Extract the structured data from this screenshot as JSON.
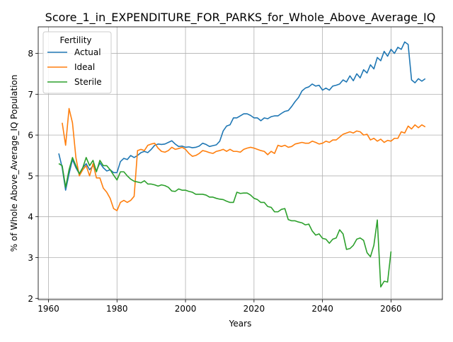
{
  "chart_data": {
    "type": "line",
    "title": "Score_1_in_EXPENDITURE_FOR_PARKS_for_Whole_Above_Average_IQ",
    "xlabel": "Years",
    "ylabel": "% of Whole Above_Average_IQ Population",
    "xlim": [
      1957,
      2075
    ],
    "ylim": [
      1.97,
      8.65
    ],
    "xticks": [
      1960,
      1980,
      2000,
      2020,
      2040,
      2060
    ],
    "yticks": [
      2,
      3,
      4,
      5,
      6,
      7,
      8
    ],
    "grid": true,
    "legend": {
      "title": "Fertility",
      "placement": "top-left"
    },
    "series": [
      {
        "name": "Actual",
        "color": "#1f77b4",
        "points": [
          [
            1963,
            5.55
          ],
          [
            1964,
            5.2
          ],
          [
            1965,
            4.65
          ],
          [
            1966,
            5.05
          ],
          [
            1967,
            5.4
          ],
          [
            1968,
            5.2
          ],
          [
            1969,
            5.05
          ],
          [
            1970,
            5.2
          ],
          [
            1971,
            5.3
          ],
          [
            1972,
            5.15
          ],
          [
            1973,
            5.25
          ],
          [
            1974,
            5.12
          ],
          [
            1975,
            5.32
          ],
          [
            1976,
            5.2
          ],
          [
            1977,
            5.12
          ],
          [
            1978,
            5.15
          ],
          [
            1979,
            5.08
          ],
          [
            1980,
            5.08
          ],
          [
            1981,
            5.35
          ],
          [
            1982,
            5.43
          ],
          [
            1983,
            5.4
          ],
          [
            1984,
            5.5
          ],
          [
            1985,
            5.45
          ],
          [
            1986,
            5.5
          ],
          [
            1987,
            5.57
          ],
          [
            1988,
            5.6
          ],
          [
            1989,
            5.57
          ],
          [
            1990,
            5.65
          ],
          [
            1991,
            5.75
          ],
          [
            1992,
            5.78
          ],
          [
            1993,
            5.77
          ],
          [
            1994,
            5.78
          ],
          [
            1995,
            5.82
          ],
          [
            1996,
            5.86
          ],
          [
            1997,
            5.78
          ],
          [
            1998,
            5.72
          ],
          [
            1999,
            5.73
          ],
          [
            2000,
            5.7
          ],
          [
            2001,
            5.71
          ],
          [
            2002,
            5.69
          ],
          [
            2003,
            5.7
          ],
          [
            2004,
            5.73
          ],
          [
            2005,
            5.8
          ],
          [
            2006,
            5.77
          ],
          [
            2007,
            5.72
          ],
          [
            2008,
            5.74
          ],
          [
            2009,
            5.76
          ],
          [
            2010,
            5.85
          ],
          [
            2011,
            6.1
          ],
          [
            2012,
            6.22
          ],
          [
            2013,
            6.25
          ],
          [
            2014,
            6.42
          ],
          [
            2015,
            6.42
          ],
          [
            2016,
            6.47
          ],
          [
            2017,
            6.52
          ],
          [
            2018,
            6.52
          ],
          [
            2019,
            6.48
          ],
          [
            2020,
            6.42
          ],
          [
            2021,
            6.42
          ],
          [
            2022,
            6.35
          ],
          [
            2023,
            6.42
          ],
          [
            2024,
            6.4
          ],
          [
            2025,
            6.45
          ],
          [
            2026,
            6.47
          ],
          [
            2027,
            6.47
          ],
          [
            2028,
            6.53
          ],
          [
            2029,
            6.58
          ],
          [
            2030,
            6.6
          ],
          [
            2031,
            6.7
          ],
          [
            2032,
            6.82
          ],
          [
            2033,
            6.92
          ],
          [
            2034,
            7.08
          ],
          [
            2035,
            7.15
          ],
          [
            2036,
            7.18
          ],
          [
            2037,
            7.25
          ],
          [
            2038,
            7.2
          ],
          [
            2039,
            7.22
          ],
          [
            2040,
            7.1
          ],
          [
            2041,
            7.15
          ],
          [
            2042,
            7.1
          ],
          [
            2043,
            7.2
          ],
          [
            2044,
            7.22
          ],
          [
            2045,
            7.25
          ],
          [
            2046,
            7.35
          ],
          [
            2047,
            7.3
          ],
          [
            2048,
            7.45
          ],
          [
            2049,
            7.33
          ],
          [
            2050,
            7.5
          ],
          [
            2051,
            7.4
          ],
          [
            2052,
            7.6
          ],
          [
            2053,
            7.52
          ],
          [
            2054,
            7.72
          ],
          [
            2055,
            7.62
          ],
          [
            2056,
            7.9
          ],
          [
            2057,
            7.82
          ],
          [
            2058,
            8.05
          ],
          [
            2059,
            7.93
          ],
          [
            2060,
            8.1
          ],
          [
            2061,
            8.0
          ],
          [
            2062,
            8.15
          ],
          [
            2063,
            8.1
          ],
          [
            2064,
            8.28
          ],
          [
            2065,
            8.22
          ],
          [
            2066,
            7.35
          ],
          [
            2067,
            7.28
          ],
          [
            2068,
            7.38
          ],
          [
            2069,
            7.32
          ],
          [
            2070,
            7.38
          ]
        ]
      },
      {
        "name": "Ideal",
        "color": "#ff7f0e",
        "points": [
          [
            1964,
            6.3
          ],
          [
            1965,
            5.75
          ],
          [
            1966,
            6.65
          ],
          [
            1967,
            6.3
          ],
          [
            1968,
            5.45
          ],
          [
            1969,
            5.0
          ],
          [
            1970,
            5.15
          ],
          [
            1971,
            5.25
          ],
          [
            1972,
            5.0
          ],
          [
            1973,
            5.3
          ],
          [
            1974,
            4.95
          ],
          [
            1975,
            4.95
          ],
          [
            1976,
            4.7
          ],
          [
            1977,
            4.6
          ],
          [
            1978,
            4.45
          ],
          [
            1979,
            4.2
          ],
          [
            1980,
            4.15
          ],
          [
            1981,
            4.35
          ],
          [
            1982,
            4.4
          ],
          [
            1983,
            4.35
          ],
          [
            1984,
            4.4
          ],
          [
            1985,
            4.5
          ],
          [
            1986,
            5.62
          ],
          [
            1987,
            5.65
          ],
          [
            1988,
            5.62
          ],
          [
            1989,
            5.75
          ],
          [
            1990,
            5.78
          ],
          [
            1991,
            5.8
          ],
          [
            1992,
            5.68
          ],
          [
            1993,
            5.6
          ],
          [
            1994,
            5.58
          ],
          [
            1995,
            5.62
          ],
          [
            1996,
            5.7
          ],
          [
            1997,
            5.65
          ],
          [
            1998,
            5.67
          ],
          [
            1999,
            5.7
          ],
          [
            2000,
            5.65
          ],
          [
            2001,
            5.55
          ],
          [
            2002,
            5.48
          ],
          [
            2003,
            5.5
          ],
          [
            2004,
            5.55
          ],
          [
            2005,
            5.62
          ],
          [
            2006,
            5.6
          ],
          [
            2007,
            5.57
          ],
          [
            2008,
            5.55
          ],
          [
            2009,
            5.6
          ],
          [
            2010,
            5.62
          ],
          [
            2011,
            5.65
          ],
          [
            2012,
            5.6
          ],
          [
            2013,
            5.65
          ],
          [
            2014,
            5.6
          ],
          [
            2015,
            5.6
          ],
          [
            2016,
            5.58
          ],
          [
            2017,
            5.65
          ],
          [
            2018,
            5.68
          ],
          [
            2019,
            5.7
          ],
          [
            2020,
            5.68
          ],
          [
            2021,
            5.65
          ],
          [
            2022,
            5.62
          ],
          [
            2023,
            5.6
          ],
          [
            2024,
            5.52
          ],
          [
            2025,
            5.6
          ],
          [
            2026,
            5.55
          ],
          [
            2027,
            5.75
          ],
          [
            2028,
            5.72
          ],
          [
            2029,
            5.75
          ],
          [
            2030,
            5.7
          ],
          [
            2031,
            5.72
          ],
          [
            2032,
            5.78
          ],
          [
            2033,
            5.8
          ],
          [
            2034,
            5.82
          ],
          [
            2035,
            5.8
          ],
          [
            2036,
            5.8
          ],
          [
            2037,
            5.85
          ],
          [
            2038,
            5.82
          ],
          [
            2039,
            5.78
          ],
          [
            2040,
            5.8
          ],
          [
            2041,
            5.85
          ],
          [
            2042,
            5.82
          ],
          [
            2043,
            5.88
          ],
          [
            2044,
            5.88
          ],
          [
            2045,
            5.95
          ],
          [
            2046,
            6.02
          ],
          [
            2047,
            6.05
          ],
          [
            2048,
            6.08
          ],
          [
            2049,
            6.05
          ],
          [
            2050,
            6.1
          ],
          [
            2051,
            6.08
          ],
          [
            2052,
            6.0
          ],
          [
            2053,
            6.02
          ],
          [
            2054,
            5.88
          ],
          [
            2055,
            5.92
          ],
          [
            2056,
            5.85
          ],
          [
            2057,
            5.9
          ],
          [
            2058,
            5.82
          ],
          [
            2059,
            5.87
          ],
          [
            2060,
            5.85
          ],
          [
            2061,
            5.92
          ],
          [
            2062,
            5.92
          ],
          [
            2063,
            6.08
          ],
          [
            2064,
            6.05
          ],
          [
            2065,
            6.22
          ],
          [
            2066,
            6.15
          ],
          [
            2067,
            6.25
          ],
          [
            2068,
            6.18
          ],
          [
            2069,
            6.25
          ],
          [
            2070,
            6.2
          ]
        ]
      },
      {
        "name": "Sterile",
        "color": "#2ca02c",
        "points": [
          [
            1963,
            5.3
          ],
          [
            1964,
            5.25
          ],
          [
            1965,
            4.72
          ],
          [
            1966,
            5.15
          ],
          [
            1967,
            5.45
          ],
          [
            1968,
            5.25
          ],
          [
            1969,
            5.05
          ],
          [
            1970,
            5.2
          ],
          [
            1971,
            5.45
          ],
          [
            1972,
            5.25
          ],
          [
            1973,
            5.38
          ],
          [
            1974,
            5.1
          ],
          [
            1975,
            5.38
          ],
          [
            1976,
            5.25
          ],
          [
            1977,
            5.25
          ],
          [
            1978,
            5.15
          ],
          [
            1979,
            5.02
          ],
          [
            1980,
            4.9
          ],
          [
            1981,
            5.1
          ],
          [
            1982,
            5.1
          ],
          [
            1983,
            5.0
          ],
          [
            1984,
            4.92
          ],
          [
            1985,
            4.87
          ],
          [
            1986,
            4.85
          ],
          [
            1987,
            4.83
          ],
          [
            1988,
            4.88
          ],
          [
            1989,
            4.8
          ],
          [
            1990,
            4.8
          ],
          [
            1991,
            4.78
          ],
          [
            1992,
            4.75
          ],
          [
            1993,
            4.78
          ],
          [
            1994,
            4.76
          ],
          [
            1995,
            4.72
          ],
          [
            1996,
            4.63
          ],
          [
            1997,
            4.62
          ],
          [
            1998,
            4.68
          ],
          [
            1999,
            4.65
          ],
          [
            2000,
            4.65
          ],
          [
            2001,
            4.62
          ],
          [
            2002,
            4.6
          ],
          [
            2003,
            4.55
          ],
          [
            2004,
            4.55
          ],
          [
            2005,
            4.55
          ],
          [
            2006,
            4.53
          ],
          [
            2007,
            4.48
          ],
          [
            2008,
            4.48
          ],
          [
            2009,
            4.45
          ],
          [
            2010,
            4.43
          ],
          [
            2011,
            4.42
          ],
          [
            2012,
            4.38
          ],
          [
            2013,
            4.35
          ],
          [
            2014,
            4.35
          ],
          [
            2015,
            4.6
          ],
          [
            2016,
            4.57
          ],
          [
            2017,
            4.58
          ],
          [
            2018,
            4.58
          ],
          [
            2019,
            4.53
          ],
          [
            2020,
            4.45
          ],
          [
            2021,
            4.42
          ],
          [
            2022,
            4.35
          ],
          [
            2023,
            4.35
          ],
          [
            2024,
            4.25
          ],
          [
            2025,
            4.23
          ],
          [
            2026,
            4.12
          ],
          [
            2027,
            4.12
          ],
          [
            2028,
            4.18
          ],
          [
            2029,
            4.2
          ],
          [
            2030,
            3.93
          ],
          [
            2031,
            3.9
          ],
          [
            2032,
            3.9
          ],
          [
            2033,
            3.87
          ],
          [
            2034,
            3.85
          ],
          [
            2035,
            3.8
          ],
          [
            2036,
            3.82
          ],
          [
            2037,
            3.65
          ],
          [
            2038,
            3.55
          ],
          [
            2039,
            3.58
          ],
          [
            2040,
            3.47
          ],
          [
            2041,
            3.45
          ],
          [
            2042,
            3.35
          ],
          [
            2043,
            3.45
          ],
          [
            2044,
            3.48
          ],
          [
            2045,
            3.68
          ],
          [
            2046,
            3.58
          ],
          [
            2047,
            3.2
          ],
          [
            2048,
            3.22
          ],
          [
            2049,
            3.3
          ],
          [
            2050,
            3.45
          ],
          [
            2051,
            3.48
          ],
          [
            2052,
            3.42
          ],
          [
            2053,
            3.12
          ],
          [
            2054,
            3.02
          ],
          [
            2055,
            3.3
          ],
          [
            2056,
            3.92
          ],
          [
            2057,
            2.28
          ],
          [
            2058,
            2.42
          ],
          [
            2059,
            2.4
          ],
          [
            2060,
            3.15
          ]
        ]
      }
    ]
  }
}
